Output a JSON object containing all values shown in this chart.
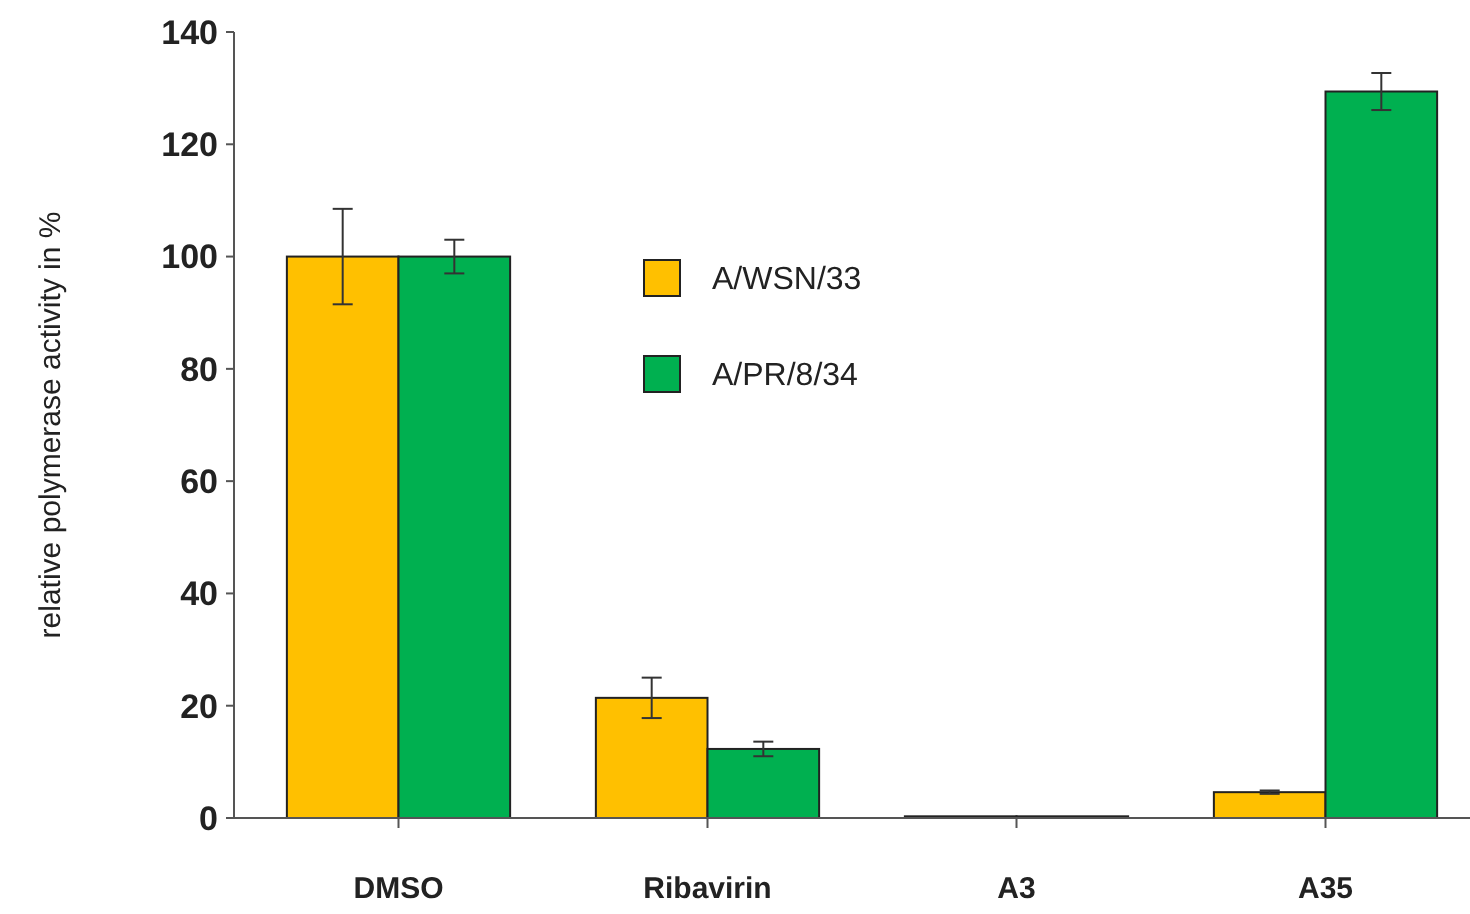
{
  "chart_data": {
    "type": "bar",
    "ylabel": "relative polymerase activity in %",
    "categories": [
      "DMSO",
      "Ribavirin",
      "A3",
      "A35"
    ],
    "series": [
      {
        "name": "A/WSN/33",
        "color": "#ffc000",
        "values": [
          100,
          21.4,
          0.3,
          4.6
        ],
        "errors": [
          8.5,
          3.6,
          null,
          0.3
        ]
      },
      {
        "name": "A/PR/8/34",
        "color": "#00b050",
        "values": [
          100,
          12.3,
          0.3,
          129.4
        ],
        "errors": [
          3,
          1.3,
          null,
          3.3
        ]
      }
    ],
    "ylim": [
      0,
      140
    ],
    "yticks": [
      0,
      20,
      40,
      60,
      80,
      100,
      120,
      140
    ],
    "grid": false,
    "legend": "top"
  }
}
